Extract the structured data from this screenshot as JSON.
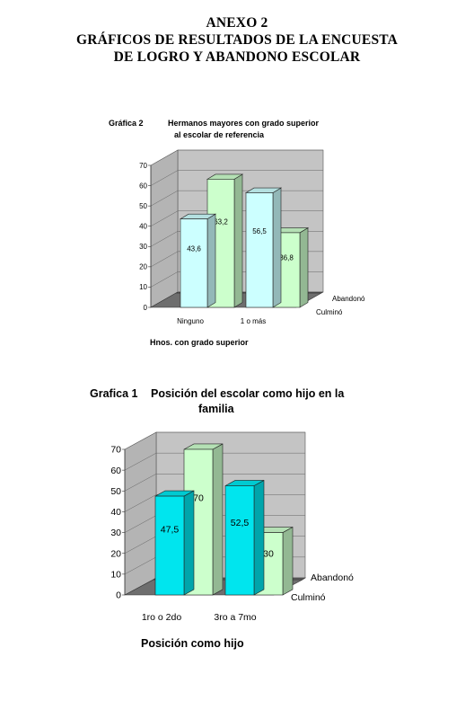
{
  "heading": {
    "line1": "ANEXO 2",
    "line2": "GRÁFICOS DE RESULTADOS DE LA ENCUESTA",
    "line3": "DE LOGRO Y ABANDONO ESCOLAR"
  },
  "colors": {
    "wall": "#c4c4c4",
    "floor": "#6e6e6e",
    "chart2_front": "#ccffff",
    "chart2_back": "#ccffcc",
    "chart1_front": "#00e5ee",
    "chart1_back": "#ccffcc"
  },
  "chart_data": [
    {
      "type": "bar",
      "number_label": "Gráfica 2",
      "title_line1": "Hermanos mayores con grado superior",
      "title_line2": "al escolar de referencia",
      "xlabel": "Hnos. con grado superior",
      "categories": [
        "Ninguno",
        "1 o más"
      ],
      "series": [
        {
          "name": "Culminó",
          "values": [
            43.6,
            56.5
          ]
        },
        {
          "name": "Abandonó",
          "values": [
            63.2,
            36.8
          ]
        }
      ],
      "data_labels": {
        "Culminó": [
          "43,6",
          "56,5"
        ],
        "Abandonó": [
          "63,2",
          "36,8"
        ]
      },
      "yticks": [
        "0",
        "10",
        "20",
        "30",
        "40",
        "50",
        "60",
        "70"
      ],
      "ylim": [
        0,
        70
      ],
      "grid": true
    },
    {
      "type": "bar",
      "number_label": "Grafica 1",
      "title_line1": "Posición del escolar como hijo en la",
      "title_line2": "familia",
      "xlabel": "Posición como hijo",
      "categories": [
        "1ro o 2do",
        "3ro a 7mo"
      ],
      "series": [
        {
          "name": "Culminó",
          "values": [
            47.5,
            52.5
          ]
        },
        {
          "name": "Abandonó",
          "values": [
            70,
            30
          ]
        }
      ],
      "data_labels": {
        "Culminó": [
          "47,5",
          "52,5"
        ],
        "Abandonó": [
          "70",
          "30"
        ]
      },
      "yticks": [
        "0",
        "10",
        "20",
        "30",
        "40",
        "50",
        "60",
        "70"
      ],
      "ylim": [
        0,
        70
      ],
      "grid": true
    }
  ]
}
